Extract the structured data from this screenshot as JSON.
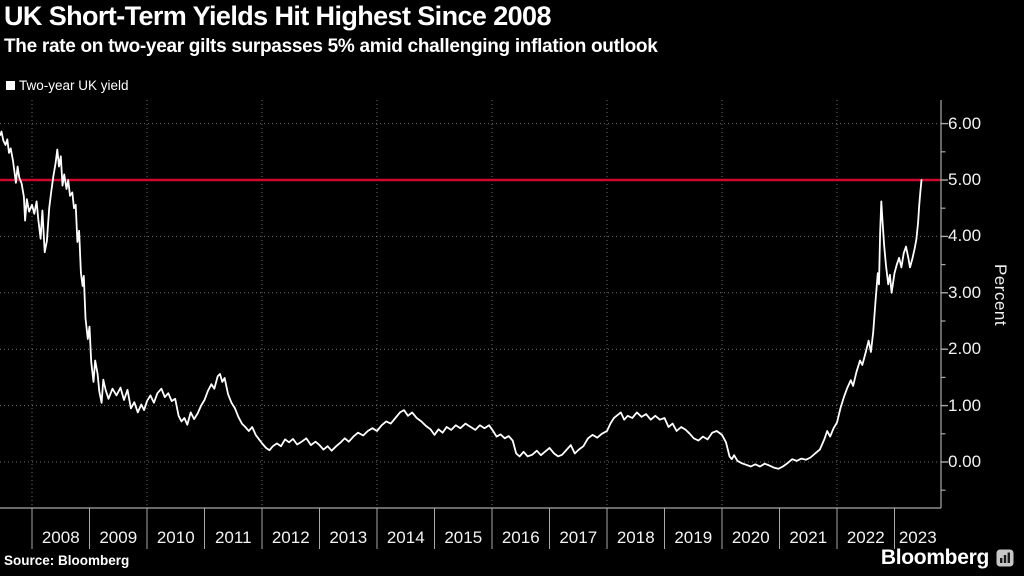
{
  "header": {
    "title": "UK Short-Term Yields Hit Highest Since 2008",
    "subtitle": "The rate on two-year gilts surpasses 5% amid challenging inflation outlook"
  },
  "legend": {
    "label": "Two-year UK yield"
  },
  "y_axis": {
    "unit_label": "Percent"
  },
  "footer": {
    "source": "Source: Bloomberg",
    "brand": "Bloomberg"
  },
  "colors": {
    "background": "#000000",
    "text": "#ffffff",
    "axis": "#a8a8a8",
    "grid": "#c9c9c9",
    "series": "#ffffff",
    "threshold": "#d0082e"
  },
  "chart_data": {
    "type": "line",
    "title": "UK Short-Term Yields Hit Highest Since 2008",
    "subtitle": "The rate on two-year gilts surpasses 5% amid challenging inflation outlook",
    "series_name": "Two-year UK yield",
    "ylabel": "Percent",
    "ylim": [
      -0.8,
      6.45
    ],
    "y_major_ticks": [
      0,
      1,
      2,
      3,
      4,
      5,
      6
    ],
    "y_tick_labels": [
      "0.00",
      "1.00",
      "2.00",
      "3.00",
      "4.00",
      "5.00",
      "6.00"
    ],
    "y_minor_ticks": [
      -0.5,
      0.5,
      1.5,
      2.5,
      3.5,
      4.5,
      5.5
    ],
    "threshold_line": 5.0,
    "x_categories": [
      "2008",
      "2009",
      "2010",
      "2011",
      "2012",
      "2013",
      "2014",
      "2015",
      "2016",
      "2017",
      "2018",
      "2019",
      "2020",
      "2021",
      "2022",
      "2023"
    ],
    "x_gridline_years": [
      2008,
      2010,
      2012,
      2014,
      2016,
      2018,
      2020,
      2022
    ],
    "x_range_years": [
      2007.45,
      2023.81
    ],
    "grid": "dotted",
    "legend_position": "top-left",
    "points": [
      [
        2007.45,
        5.8
      ],
      [
        2007.47,
        5.86
      ],
      [
        2007.5,
        5.7
      ],
      [
        2007.54,
        5.62
      ],
      [
        2007.57,
        5.72
      ],
      [
        2007.6,
        5.48
      ],
      [
        2007.63,
        5.56
      ],
      [
        2007.67,
        5.34
      ],
      [
        2007.7,
        5.1
      ],
      [
        2007.72,
        4.95
      ],
      [
        2007.75,
        5.24
      ],
      [
        2007.78,
        5.04
      ],
      [
        2007.82,
        4.94
      ],
      [
        2007.86,
        4.7
      ],
      [
        2007.88,
        4.28
      ],
      [
        2007.91,
        4.66
      ],
      [
        2007.95,
        4.44
      ],
      [
        2008.0,
        4.56
      ],
      [
        2008.04,
        4.4
      ],
      [
        2008.08,
        4.62
      ],
      [
        2008.11,
        4.3
      ],
      [
        2008.15,
        3.96
      ],
      [
        2008.18,
        4.46
      ],
      [
        2008.22,
        3.72
      ],
      [
        2008.26,
        3.92
      ],
      [
        2008.3,
        4.5
      ],
      [
        2008.33,
        4.76
      ],
      [
        2008.37,
        5.06
      ],
      [
        2008.41,
        5.3
      ],
      [
        2008.44,
        5.54
      ],
      [
        2008.47,
        5.24
      ],
      [
        2008.5,
        5.42
      ],
      [
        2008.53,
        4.9
      ],
      [
        2008.56,
        5.1
      ],
      [
        2008.6,
        4.84
      ],
      [
        2008.63,
        5.0
      ],
      [
        2008.66,
        4.72
      ],
      [
        2008.7,
        4.78
      ],
      [
        2008.73,
        4.5
      ],
      [
        2008.76,
        4.56
      ],
      [
        2008.79,
        3.9
      ],
      [
        2008.82,
        4.1
      ],
      [
        2008.85,
        3.36
      ],
      [
        2008.88,
        3.12
      ],
      [
        2008.9,
        3.3
      ],
      [
        2008.93,
        2.55
      ],
      [
        2008.97,
        2.18
      ],
      [
        2009.0,
        2.4
      ],
      [
        2009.03,
        1.78
      ],
      [
        2009.07,
        1.42
      ],
      [
        2009.1,
        1.8
      ],
      [
        2009.14,
        1.56
      ],
      [
        2009.17,
        1.25
      ],
      [
        2009.21,
        1.05
      ],
      [
        2009.24,
        1.46
      ],
      [
        2009.28,
        1.28
      ],
      [
        2009.33,
        1.12
      ],
      [
        2009.4,
        1.3
      ],
      [
        2009.47,
        1.18
      ],
      [
        2009.54,
        1.32
      ],
      [
        2009.6,
        1.1
      ],
      [
        2009.66,
        1.28
      ],
      [
        2009.72,
        0.95
      ],
      [
        2009.78,
        1.06
      ],
      [
        2009.84,
        0.88
      ],
      [
        2009.9,
        1.02
      ],
      [
        2009.95,
        0.92
      ],
      [
        2010.0,
        1.08
      ],
      [
        2010.06,
        1.18
      ],
      [
        2010.12,
        1.05
      ],
      [
        2010.18,
        1.22
      ],
      [
        2010.25,
        1.3
      ],
      [
        2010.31,
        1.15
      ],
      [
        2010.37,
        1.22
      ],
      [
        2010.43,
        1.08
      ],
      [
        2010.49,
        1.12
      ],
      [
        2010.55,
        0.82
      ],
      [
        2010.6,
        0.72
      ],
      [
        2010.65,
        0.78
      ],
      [
        2010.7,
        0.66
      ],
      [
        2010.76,
        0.88
      ],
      [
        2010.82,
        0.76
      ],
      [
        2010.88,
        0.86
      ],
      [
        2010.94,
        1.0
      ],
      [
        2011.0,
        1.1
      ],
      [
        2011.06,
        1.26
      ],
      [
        2011.12,
        1.38
      ],
      [
        2011.17,
        1.3
      ],
      [
        2011.23,
        1.52
      ],
      [
        2011.27,
        1.56
      ],
      [
        2011.31,
        1.42
      ],
      [
        2011.35,
        1.49
      ],
      [
        2011.41,
        1.2
      ],
      [
        2011.47,
        1.05
      ],
      [
        2011.53,
        0.95
      ],
      [
        2011.59,
        0.8
      ],
      [
        2011.65,
        0.68
      ],
      [
        2011.71,
        0.62
      ],
      [
        2011.77,
        0.55
      ],
      [
        2011.83,
        0.62
      ],
      [
        2011.89,
        0.48
      ],
      [
        2011.95,
        0.4
      ],
      [
        2012.01,
        0.32
      ],
      [
        2012.07,
        0.25
      ],
      [
        2012.13,
        0.21
      ],
      [
        2012.19,
        0.28
      ],
      [
        2012.26,
        0.33
      ],
      [
        2012.33,
        0.28
      ],
      [
        2012.4,
        0.4
      ],
      [
        2012.47,
        0.35
      ],
      [
        2012.54,
        0.41
      ],
      [
        2012.61,
        0.31
      ],
      [
        2012.69,
        0.36
      ],
      [
        2012.77,
        0.42
      ],
      [
        2012.85,
        0.3
      ],
      [
        2012.93,
        0.36
      ],
      [
        2013.0,
        0.3
      ],
      [
        2013.07,
        0.22
      ],
      [
        2013.14,
        0.28
      ],
      [
        2013.21,
        0.2
      ],
      [
        2013.29,
        0.28
      ],
      [
        2013.37,
        0.35
      ],
      [
        2013.44,
        0.42
      ],
      [
        2013.51,
        0.36
      ],
      [
        2013.59,
        0.45
      ],
      [
        2013.67,
        0.52
      ],
      [
        2013.76,
        0.47
      ],
      [
        2013.84,
        0.55
      ],
      [
        2013.92,
        0.6
      ],
      [
        2014.0,
        0.55
      ],
      [
        2014.08,
        0.65
      ],
      [
        2014.16,
        0.72
      ],
      [
        2014.24,
        0.68
      ],
      [
        2014.32,
        0.78
      ],
      [
        2014.4,
        0.88
      ],
      [
        2014.47,
        0.92
      ],
      [
        2014.54,
        0.82
      ],
      [
        2014.61,
        0.88
      ],
      [
        2014.69,
        0.78
      ],
      [
        2014.77,
        0.72
      ],
      [
        2014.85,
        0.64
      ],
      [
        2014.93,
        0.58
      ],
      [
        2015.0,
        0.48
      ],
      [
        2015.07,
        0.58
      ],
      [
        2015.14,
        0.52
      ],
      [
        2015.21,
        0.62
      ],
      [
        2015.29,
        0.57
      ],
      [
        2015.37,
        0.65
      ],
      [
        2015.45,
        0.6
      ],
      [
        2015.54,
        0.68
      ],
      [
        2015.63,
        0.62
      ],
      [
        2015.71,
        0.57
      ],
      [
        2015.79,
        0.65
      ],
      [
        2015.87,
        0.6
      ],
      [
        2015.95,
        0.65
      ],
      [
        2016.02,
        0.55
      ],
      [
        2016.08,
        0.45
      ],
      [
        2016.15,
        0.49
      ],
      [
        2016.22,
        0.42
      ],
      [
        2016.29,
        0.46
      ],
      [
        2016.36,
        0.38
      ],
      [
        2016.42,
        0.15
      ],
      [
        2016.48,
        0.1
      ],
      [
        2016.55,
        0.18
      ],
      [
        2016.62,
        0.1
      ],
      [
        2016.7,
        0.13
      ],
      [
        2016.78,
        0.2
      ],
      [
        2016.85,
        0.12
      ],
      [
        2016.92,
        0.18
      ],
      [
        2017.0,
        0.25
      ],
      [
        2017.08,
        0.15
      ],
      [
        2017.15,
        0.1
      ],
      [
        2017.22,
        0.13
      ],
      [
        2017.3,
        0.22
      ],
      [
        2017.37,
        0.3
      ],
      [
        2017.44,
        0.15
      ],
      [
        2017.51,
        0.22
      ],
      [
        2017.59,
        0.28
      ],
      [
        2017.67,
        0.42
      ],
      [
        2017.75,
        0.48
      ],
      [
        2017.83,
        0.43
      ],
      [
        2017.91,
        0.5
      ],
      [
        2018.0,
        0.55
      ],
      [
        2018.06,
        0.68
      ],
      [
        2018.12,
        0.78
      ],
      [
        2018.18,
        0.83
      ],
      [
        2018.24,
        0.88
      ],
      [
        2018.3,
        0.75
      ],
      [
        2018.36,
        0.82
      ],
      [
        2018.44,
        0.78
      ],
      [
        2018.52,
        0.88
      ],
      [
        2018.6,
        0.8
      ],
      [
        2018.68,
        0.85
      ],
      [
        2018.76,
        0.75
      ],
      [
        2018.84,
        0.82
      ],
      [
        2018.92,
        0.75
      ],
      [
        2019.0,
        0.78
      ],
      [
        2019.07,
        0.62
      ],
      [
        2019.14,
        0.68
      ],
      [
        2019.21,
        0.55
      ],
      [
        2019.29,
        0.62
      ],
      [
        2019.37,
        0.57
      ],
      [
        2019.44,
        0.5
      ],
      [
        2019.51,
        0.42
      ],
      [
        2019.59,
        0.38
      ],
      [
        2019.67,
        0.45
      ],
      [
        2019.75,
        0.4
      ],
      [
        2019.83,
        0.52
      ],
      [
        2019.91,
        0.55
      ],
      [
        2020.0,
        0.48
      ],
      [
        2020.07,
        0.35
      ],
      [
        2020.13,
        0.1
      ],
      [
        2020.17,
        0.05
      ],
      [
        2020.21,
        0.12
      ],
      [
        2020.27,
        0.02
      ],
      [
        2020.34,
        -0.02
      ],
      [
        2020.42,
        -0.05
      ],
      [
        2020.5,
        -0.08
      ],
      [
        2020.58,
        -0.04
      ],
      [
        2020.66,
        -0.08
      ],
      [
        2020.74,
        -0.03
      ],
      [
        2020.82,
        -0.06
      ],
      [
        2020.9,
        -0.1
      ],
      [
        2020.98,
        -0.12
      ],
      [
        2021.06,
        -0.08
      ],
      [
        2021.14,
        -0.02
      ],
      [
        2021.22,
        0.05
      ],
      [
        2021.3,
        0.02
      ],
      [
        2021.38,
        0.06
      ],
      [
        2021.46,
        0.04
      ],
      [
        2021.54,
        0.08
      ],
      [
        2021.62,
        0.15
      ],
      [
        2021.7,
        0.22
      ],
      [
        2021.78,
        0.4
      ],
      [
        2021.83,
        0.55
      ],
      [
        2021.88,
        0.45
      ],
      [
        2021.94,
        0.6
      ],
      [
        2022.0,
        0.7
      ],
      [
        2022.06,
        0.95
      ],
      [
        2022.12,
        1.15
      ],
      [
        2022.18,
        1.32
      ],
      [
        2022.24,
        1.45
      ],
      [
        2022.28,
        1.35
      ],
      [
        2022.34,
        1.6
      ],
      [
        2022.4,
        1.8
      ],
      [
        2022.44,
        1.72
      ],
      [
        2022.5,
        1.95
      ],
      [
        2022.55,
        2.15
      ],
      [
        2022.59,
        1.95
      ],
      [
        2022.63,
        2.3
      ],
      [
        2022.67,
        2.85
      ],
      [
        2022.71,
        3.35
      ],
      [
        2022.73,
        3.15
      ],
      [
        2022.75,
        4.05
      ],
      [
        2022.77,
        4.62
      ],
      [
        2022.79,
        4.3
      ],
      [
        2022.82,
        3.85
      ],
      [
        2022.85,
        3.5
      ],
      [
        2022.89,
        3.15
      ],
      [
        2022.92,
        3.32
      ],
      [
        2022.95,
        3.0
      ],
      [
        2023.0,
        3.35
      ],
      [
        2023.04,
        3.5
      ],
      [
        2023.08,
        3.62
      ],
      [
        2023.12,
        3.45
      ],
      [
        2023.16,
        3.7
      ],
      [
        2023.2,
        3.82
      ],
      [
        2023.24,
        3.62
      ],
      [
        2023.27,
        3.45
      ],
      [
        2023.31,
        3.6
      ],
      [
        2023.35,
        3.78
      ],
      [
        2023.38,
        3.95
      ],
      [
        2023.41,
        4.25
      ],
      [
        2023.43,
        4.55
      ],
      [
        2023.45,
        4.8
      ],
      [
        2023.47,
        5.0
      ]
    ]
  }
}
